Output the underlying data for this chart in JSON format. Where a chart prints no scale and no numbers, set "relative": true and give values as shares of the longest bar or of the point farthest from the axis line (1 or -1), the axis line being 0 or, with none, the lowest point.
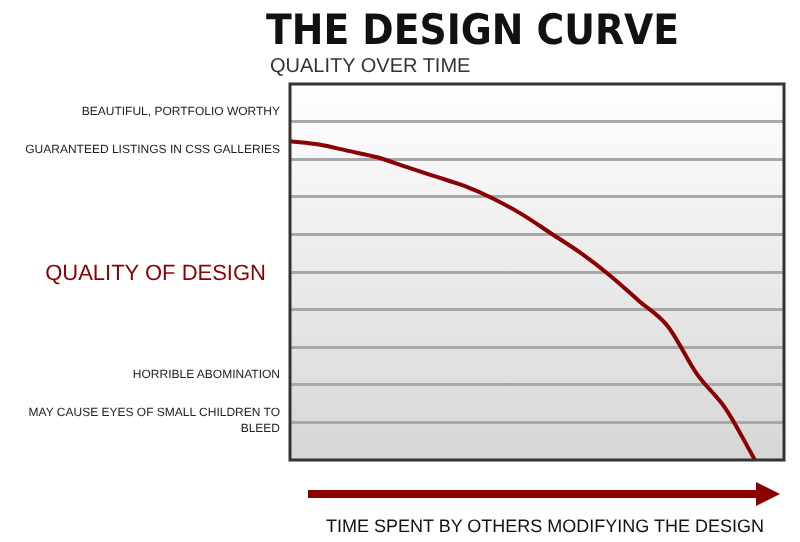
{
  "chart_data": {
    "type": "line",
    "title": "THE DESIGN CURVE",
    "subtitle": "QUALITY OVER TIME",
    "ylabel": "QUALITY OF DESIGN",
    "xlabel": "TIME SPENT BY OTHERS MODIFYING THE DESIGN",
    "relative": true,
    "categories": [
      null,
      null,
      null,
      null,
      null,
      null,
      null,
      null,
      null,
      null,
      null,
      null,
      null,
      null,
      null,
      null,
      null,
      null
    ],
    "series": [
      {
        "color": "#8b0000",
        "values": [
          1,
          0.99,
          0.97,
          0.95,
          0.92,
          0.89,
          0.86,
          0.82,
          0.77,
          0.71,
          0.65,
          0.58,
          0.5,
          0.42,
          0.27,
          0.16,
          0,
          null
        ]
      }
    ],
    "annotations": [
      "BEAUTIFUL, PORTFOLIO WORTHY",
      "GUARANTEED LISTINGS IN CSS GALLERIES",
      "HORRIBLE ABOMINATION",
      "MAY CAUSE EYES OF SMALL CHILDREN TO BLEED"
    ],
    "grid": "y",
    "legend": false,
    "marker": "none",
    "line_style": "solid",
    "tick_labels": false
  }
}
